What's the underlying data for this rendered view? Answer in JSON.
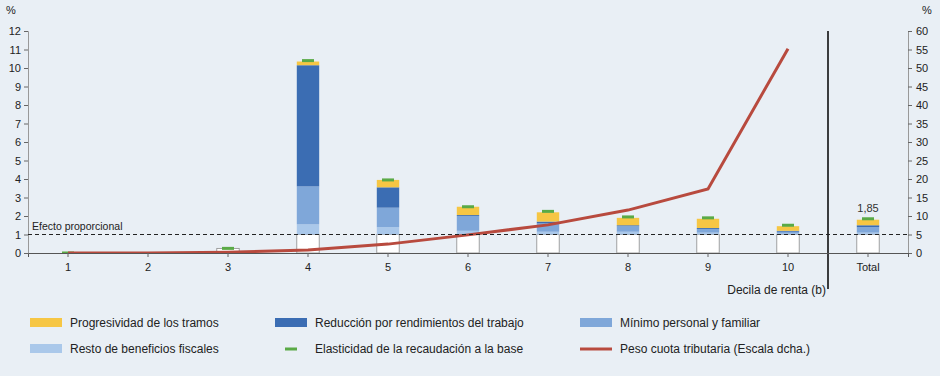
{
  "chart_data": {
    "type": "bar",
    "stacked": true,
    "x_label": "Decila de renta (b)",
    "y_label": "%",
    "y2_label": "%",
    "categories": [
      "1",
      "2",
      "3",
      "4",
      "5",
      "6",
      "7",
      "8",
      "9",
      "10",
      "Total"
    ],
    "ylim": [
      0,
      12
    ],
    "yticks": [
      0,
      1,
      2,
      3,
      4,
      5,
      6,
      7,
      8,
      9,
      10,
      11,
      12
    ],
    "y2lim": [
      0,
      60
    ],
    "y2ticks": [
      0,
      5,
      10,
      15,
      20,
      25,
      30,
      35,
      40,
      45,
      50,
      55,
      60
    ],
    "annotations": [
      {
        "text": "Efecto proporcional",
        "y": 1
      }
    ],
    "series": [
      {
        "type": "bar",
        "color": "#ffffff",
        "values": [
          0,
          0,
          0.25,
          1,
          1,
          1,
          1,
          1,
          1,
          1,
          1
        ]
      },
      {
        "name": "Resto de beneficios fiscales",
        "type": "bar",
        "color": "#aac8ea",
        "values": [
          0,
          0,
          0,
          0.55,
          0.4,
          0.2,
          0.15,
          0.15,
          0.1,
          0.05,
          0.1
        ]
      },
      {
        "name": "Mínimo personal y familiar",
        "type": "bar",
        "color": "#7fa7d9",
        "values": [
          0,
          0,
          0,
          2.05,
          1.05,
          0.8,
          0.45,
          0.3,
          0.2,
          0.1,
          0.3
        ]
      },
      {
        "name": "Reducción por rendimientos del trabajo",
        "type": "bar",
        "color": "#3b6db3",
        "values": [
          0,
          0,
          0,
          6.55,
          1.1,
          0.05,
          0.1,
          0.05,
          0.05,
          0.05,
          0.1
        ]
      },
      {
        "name": "Progresividad de los tramos",
        "type": "bar",
        "color": "#f6c644",
        "values": [
          0,
          0,
          0,
          0.2,
          0.4,
          0.45,
          0.5,
          0.4,
          0.5,
          0.25,
          0.3
        ]
      },
      {
        "name": "Elasticidad de la recaudación a la base",
        "type": "scatter",
        "marker": "dash",
        "color": "#5aaa46",
        "data_labels": true,
        "values": [
          0,
          null,
          0.25,
          10.4,
          3.95,
          2.5,
          2.25,
          1.95,
          1.9,
          1.5,
          1.85
        ],
        "value_labels": [
          null,
          null,
          null,
          null,
          null,
          null,
          null,
          null,
          null,
          null,
          "1,85"
        ]
      },
      {
        "name": "Peso cuota tributaria (Escala dcha.)",
        "type": "line",
        "axis": "y2",
        "color": "#b84a3e",
        "values": [
          0,
          0,
          0.2,
          0.8,
          2.4,
          4.9,
          7.6,
          11.6,
          17.3,
          55.2,
          null
        ]
      }
    ]
  }
}
